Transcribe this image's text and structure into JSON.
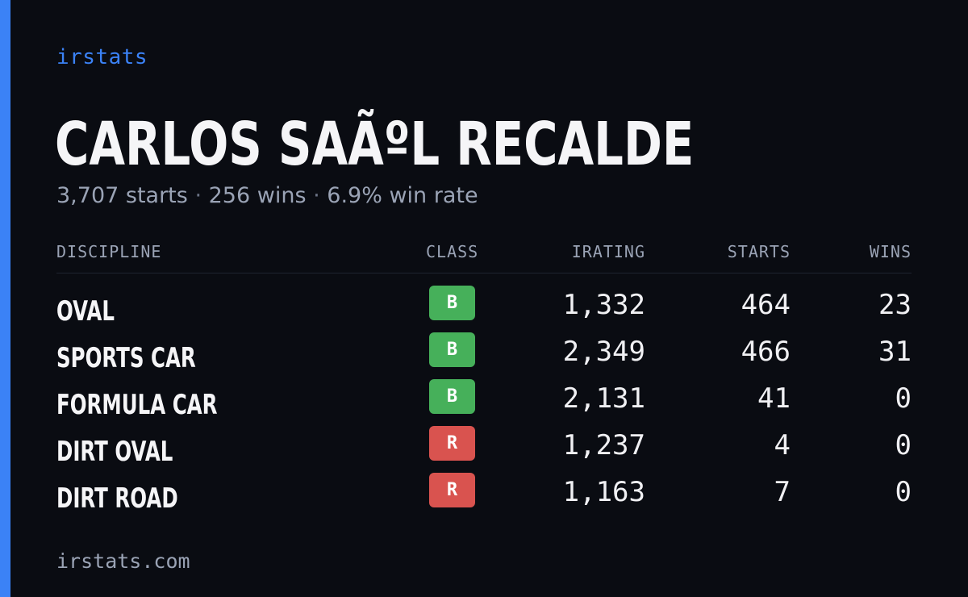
{
  "brand": "irstats",
  "driver": {
    "name": "CARLOS SAÃºL RECALDE",
    "starts_text": "3,707 starts",
    "wins_text": "256 wins",
    "win_rate_text": "6.9% win rate",
    "separator": "·"
  },
  "table": {
    "headers": {
      "discipline": "DISCIPLINE",
      "class": "CLASS",
      "irating": "IRATING",
      "starts": "STARTS",
      "wins": "WINS"
    },
    "rows": [
      {
        "discipline": "OVAL",
        "class": "B",
        "class_color": "#46b05a",
        "irating": "1,332",
        "starts": "464",
        "wins": "23"
      },
      {
        "discipline": "SPORTS CAR",
        "class": "B",
        "class_color": "#46b05a",
        "irating": "2,349",
        "starts": "466",
        "wins": "31"
      },
      {
        "discipline": "FORMULA CAR",
        "class": "B",
        "class_color": "#46b05a",
        "irating": "2,131",
        "starts": "41",
        "wins": "0"
      },
      {
        "discipline": "DIRT OVAL",
        "class": "R",
        "class_color": "#d9534f",
        "irating": "1,237",
        "starts": "4",
        "wins": "0"
      },
      {
        "discipline": "DIRT ROAD",
        "class": "R",
        "class_color": "#d9534f",
        "irating": "1,163",
        "starts": "7",
        "wins": "0"
      }
    ]
  },
  "footer": "irstats.com",
  "colors": {
    "accent": "#3b82f6",
    "background": "#0a0c12",
    "class_b": "#46b05a",
    "class_r": "#d9534f"
  }
}
